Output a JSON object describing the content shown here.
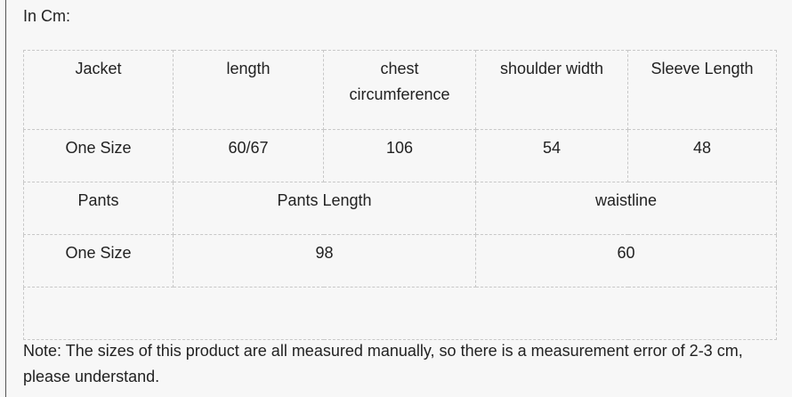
{
  "heading": "In Cm:",
  "jacket_header": [
    "Jacket",
    "length",
    "chest circumference",
    "shoulder width",
    "Sleeve Length"
  ],
  "jacket_row": [
    "One Size",
    "60/67",
    "106",
    "54",
    "48"
  ],
  "pants_header": [
    "Pants",
    "Pants Length",
    "waistline"
  ],
  "pants_row": [
    "One Size",
    "98",
    "60"
  ],
  "note": "Note: The sizes of this product are all measured manually, so there is a measurement error of 2-3 cm, please understand."
}
